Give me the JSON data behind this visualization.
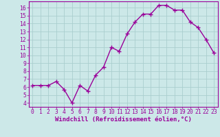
{
  "x": [
    0,
    1,
    2,
    3,
    4,
    5,
    6,
    7,
    8,
    9,
    10,
    11,
    12,
    13,
    14,
    15,
    16,
    17,
    18,
    19,
    20,
    21,
    22,
    23
  ],
  "y": [
    6.2,
    6.2,
    6.2,
    6.7,
    5.7,
    4.0,
    6.2,
    5.5,
    7.5,
    8.5,
    11.0,
    10.5,
    12.7,
    14.2,
    15.2,
    15.2,
    16.3,
    16.3,
    15.7,
    15.7,
    14.2,
    13.5,
    12.0,
    10.3
  ],
  "line_color": "#990099",
  "marker": "+",
  "marker_size": 4,
  "marker_edge_width": 1.0,
  "bg_color": "#cce8e8",
  "grid_color": "#aacece",
  "xlabel": "Windchill (Refroidissement éolien,°C)",
  "xlim": [
    -0.5,
    23.5
  ],
  "ylim": [
    3.5,
    16.8
  ],
  "yticks": [
    4,
    5,
    6,
    7,
    8,
    9,
    10,
    11,
    12,
    13,
    14,
    15,
    16
  ],
  "xticks": [
    0,
    1,
    2,
    3,
    4,
    5,
    6,
    7,
    8,
    9,
    10,
    11,
    12,
    13,
    14,
    15,
    16,
    17,
    18,
    19,
    20,
    21,
    22,
    23
  ],
  "axis_label_color": "#990099",
  "tick_color": "#990099",
  "spine_color": "#990099",
  "xlabel_fontsize": 6.5,
  "tick_fontsize": 5.8,
  "linewidth": 1.0
}
